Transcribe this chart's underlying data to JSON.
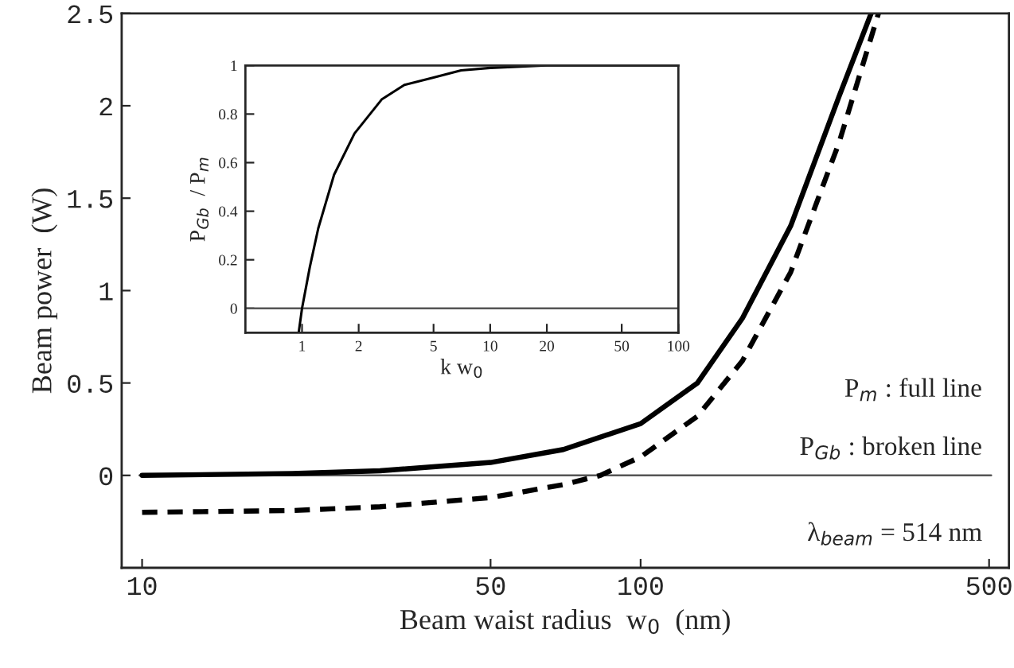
{
  "chart_data": [
    {
      "type": "line",
      "xlabel": "Beam waist radius  w$_{0}$  (nm)",
      "ylabel": "Beam power  (W)",
      "log": "x",
      "xlim": [
        9.1,
        548
      ],
      "xticks": [
        10,
        50,
        100,
        500
      ],
      "ylim": [
        -0.5,
        2.5
      ],
      "yticks": [
        0,
        0.5,
        1,
        1.5,
        2,
        2.5
      ],
      "series": [
        {
          "color": "#000000",
          "line_style": "solid",
          "x": [
            10,
            20,
            30,
            50,
            70,
            100,
            130,
            160,
            200,
            250,
            290
          ],
          "values": [
            0,
            0.01,
            0.025,
            0.07,
            0.14,
            0.28,
            0.5,
            0.85,
            1.35,
            2.05,
            2.5
          ]
        },
        {
          "color": "#000000",
          "line_style": "dashed",
          "x": [
            10,
            20,
            30,
            50,
            70,
            83,
            100,
            130,
            160,
            200,
            250,
            300
          ],
          "values": [
            -0.2,
            -0.19,
            -0.17,
            -0.12,
            -0.05,
            0,
            0.1,
            0.32,
            0.62,
            1.1,
            1.8,
            2.5
          ]
        }
      ],
      "ref_lines": [
        {
          "axis": "y",
          "value": 0,
          "color": "#555555"
        }
      ],
      "annotations": [
        "P$_{m}$ : full line",
        "P$_{Gb}$ : broken line",
        "λ$_{beam}$ = 514 nm"
      ]
    },
    {
      "type": "line",
      "xlabel": "k w$_{0}$",
      "ylabel": "P$_{Gb}$  / P$_{m}$",
      "log": "x",
      "xlim": [
        0.5,
        100
      ],
      "xticks": [
        1,
        2,
        5,
        10,
        20,
        50,
        100
      ],
      "ylim": [
        -0.1,
        1
      ],
      "yticks": [
        0,
        0.2,
        0.4,
        0.6,
        0.8,
        1
      ],
      "series": [
        {
          "color": "#000000",
          "line_style": "solid",
          "x": [
            0.96,
            1.0,
            1.1,
            1.22,
            1.48,
            1.9,
            2.65,
            3.5,
            5,
            7,
            10,
            20,
            50,
            100
          ],
          "values": [
            -0.1,
            0,
            0.17,
            0.33,
            0.55,
            0.72,
            0.86,
            0.92,
            0.95,
            0.98,
            0.99,
            1,
            1,
            1
          ]
        }
      ],
      "ref_lines": [
        {
          "axis": "y",
          "value": 0,
          "color": "#555555"
        }
      ]
    }
  ]
}
